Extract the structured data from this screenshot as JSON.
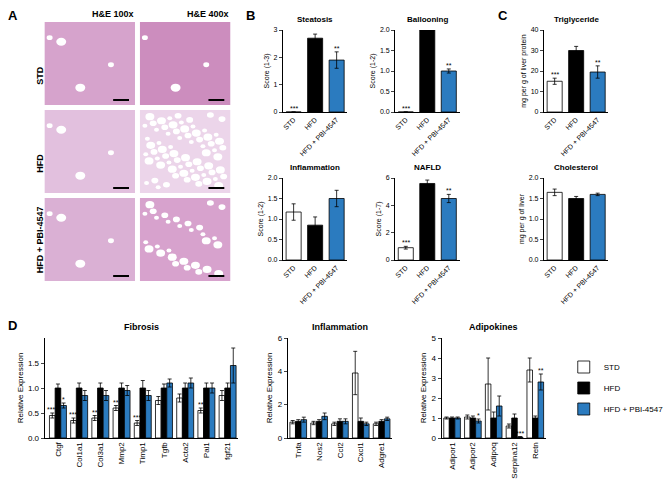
{
  "panel_labels": [
    "A",
    "B",
    "C",
    "D"
  ],
  "histology": {
    "columns": [
      "H&E 100x",
      "H&E 400x"
    ],
    "rows": [
      "STD",
      "HFD",
      "HFD + PBI-4547"
    ]
  },
  "chart_data": [
    {
      "type": "bar",
      "title": "Steatosis",
      "y_label": "Score (1-3)",
      "grid": false,
      "categories": [
        "STD",
        "HFD",
        "HFD + PBI-4547"
      ],
      "values": [
        0,
        2.7,
        1.9
      ],
      "errors": [
        0,
        0.15,
        0.3
      ],
      "colors": [
        "#ffffff",
        "#000000",
        "#2b7bbf"
      ],
      "significance": [
        "***",
        null,
        "**"
      ],
      "ylim": [
        0,
        3
      ],
      "yticks": [
        0,
        1,
        2,
        3
      ]
    },
    {
      "type": "bar",
      "title": "Ballooning",
      "y_label": "Score (1-2)",
      "grid": false,
      "categories": [
        "STD",
        "HFD",
        "HFD + PBI-4547"
      ],
      "values": [
        0,
        2.0,
        1.0
      ],
      "errors": [
        0,
        0.02,
        0.05
      ],
      "colors": [
        "#ffffff",
        "#000000",
        "#2b7bbf"
      ],
      "significance": [
        "***",
        null,
        "**"
      ],
      "ylim": [
        0,
        2
      ],
      "yticks": [
        {
          "value": 0,
          "label": "0.0"
        },
        {
          "value": 0.5,
          "label": "0.5"
        },
        {
          "value": 1,
          "label": "1.0"
        },
        {
          "value": 1.5,
          "label": "1.5"
        },
        {
          "value": 2,
          "label": "2.0"
        }
      ]
    },
    {
      "type": "bar",
      "title": "Inflammation",
      "y_label": "Score (1-2)",
      "grid": false,
      "categories": [
        "STD",
        "HFD",
        "HFD + PBI-4547"
      ],
      "values": [
        1.17,
        0.85,
        1.5
      ],
      "errors": [
        0.2,
        0.2,
        0.2
      ],
      "colors": [
        "#ffffff",
        "#000000",
        "#2b7bbf"
      ],
      "significance": [
        null,
        null,
        null
      ],
      "ylim": [
        0,
        2
      ],
      "yticks": [
        {
          "value": 0,
          "label": "0.0"
        },
        {
          "value": 0.5,
          "label": "0.5"
        },
        {
          "value": 1,
          "label": "1.0"
        },
        {
          "value": 1.5,
          "label": "1.5"
        },
        {
          "value": 2,
          "label": "2.0"
        }
      ]
    },
    {
      "type": "bar",
      "title": "NAFLD",
      "y_label": "Score (1-7)",
      "grid": false,
      "categories": [
        "STD",
        "HFD",
        "HFD + PBI-4547"
      ],
      "values": [
        0.9,
        5.6,
        4.5
      ],
      "errors": [
        0.1,
        0.25,
        0.3
      ],
      "colors": [
        "#ffffff",
        "#000000",
        "#2b7bbf"
      ],
      "significance": [
        "***",
        null,
        "**"
      ],
      "ylim": [
        0,
        6
      ],
      "yticks": [
        0,
        2,
        4,
        6
      ]
    },
    {
      "type": "bar",
      "title": "Triglyceride",
      "y_label": "mg per g of liver protein",
      "grid": false,
      "categories": [
        "STD",
        "HFD",
        "HFD + PBI-4547"
      ],
      "values": [
        15,
        30,
        19.5
      ],
      "errors": [
        1.5,
        2,
        3
      ],
      "colors": [
        "#ffffff",
        "#000000",
        "#2b7bbf"
      ],
      "significance": [
        "***",
        null,
        "**"
      ],
      "ylim": [
        0,
        40
      ],
      "yticks": [
        0,
        10,
        20,
        30,
        40
      ]
    },
    {
      "type": "bar",
      "title": "Cholesterol",
      "y_label": "mg per g of liver",
      "grid": false,
      "categories": [
        "STD",
        "HFD",
        "HFD + PBI-4547"
      ],
      "values": [
        1.65,
        1.5,
        1.6
      ],
      "errors": [
        0.08,
        0.05,
        0.03
      ],
      "colors": [
        "#ffffff",
        "#000000",
        "#2b7bbf"
      ],
      "significance": [
        null,
        null,
        null
      ],
      "ylim": [
        0,
        2
      ],
      "yticks": [
        {
          "value": 0,
          "label": "0.0"
        },
        {
          "value": 0.5,
          "label": "0.5"
        },
        {
          "value": 1,
          "label": "1.0"
        },
        {
          "value": 1.5,
          "label": "1.5"
        },
        {
          "value": 2,
          "label": "2.0"
        }
      ]
    },
    {
      "type": "bar",
      "title": "Fibrosis",
      "y_label": "Relative Expression",
      "grid": false,
      "categories": [
        "Ctgf",
        "Col1a1",
        "Col3a1",
        "Mmp2",
        "Timp1",
        "Tgfb",
        "Acta2",
        "Pai1",
        "fgf21"
      ],
      "series": [
        {
          "name": "STD",
          "color": "#ffffff",
          "values": [
            0.45,
            0.35,
            0.4,
            0.6,
            0.3,
            0.75,
            0.8,
            0.55,
            0.85
          ],
          "errors": [
            0.05,
            0.05,
            0.05,
            0.05,
            0.05,
            0.08,
            0.08,
            0.05,
            0.1
          ],
          "significance": [
            "****",
            "***",
            "**",
            "**",
            "***",
            null,
            null,
            "**",
            null
          ]
        },
        {
          "name": "HFD",
          "color": "#000000",
          "values": [
            1,
            1,
            1,
            1,
            1,
            1,
            1,
            1,
            1
          ],
          "errors": [
            0.08,
            0.1,
            0.1,
            0.1,
            0.15,
            0.08,
            0.1,
            0.1,
            0.1
          ],
          "significance": [
            null,
            null,
            null,
            null,
            null,
            null,
            null,
            null,
            null
          ]
        },
        {
          "name": "HFD + PBI-4547",
          "color": "#2b7bbf",
          "values": [
            0.65,
            0.85,
            0.85,
            0.95,
            0.85,
            1.1,
            1.1,
            1.0,
            1.45
          ],
          "errors": [
            0.05,
            0.1,
            0.1,
            0.1,
            0.1,
            0.08,
            0.1,
            0.1,
            0.35
          ],
          "significance": [
            "*",
            null,
            null,
            null,
            null,
            null,
            null,
            null,
            null
          ]
        }
      ],
      "ylim": [
        0,
        2
      ],
      "yticks": [
        {
          "value": 0,
          "label": "0.0"
        },
        {
          "value": 0.5,
          "label": "0.5"
        },
        {
          "value": 1,
          "label": "1.0"
        },
        {
          "value": 1.5,
          "label": "1.5"
        }
      ]
    },
    {
      "type": "bar",
      "title": "Inflammation",
      "y_label": "Relative Expression",
      "grid": false,
      "categories": [
        "Tnfa",
        "Nos2",
        "Ccl2",
        "Cxcl1",
        "Adgre1"
      ],
      "series": [
        {
          "name": "STD",
          "color": "#ffffff",
          "values": [
            0.95,
            0.9,
            0.85,
            3.9,
            0.85
          ],
          "errors": [
            0.1,
            0.1,
            0.1,
            1.3,
            0.1
          ],
          "significance": [
            null,
            null,
            null,
            null,
            null
          ]
        },
        {
          "name": "HFD",
          "color": "#000000",
          "values": [
            1,
            1,
            1,
            1,
            1
          ],
          "errors": [
            0.1,
            0.1,
            0.15,
            0.2,
            0.1
          ],
          "significance": [
            null,
            null,
            null,
            null,
            null
          ]
        },
        {
          "name": "HFD + PBI-4547",
          "color": "#2b7bbf",
          "values": [
            1.1,
            1.3,
            1.0,
            0.85,
            1.15
          ],
          "errors": [
            0.15,
            0.2,
            0.15,
            0.1,
            0.1
          ],
          "significance": [
            null,
            null,
            null,
            null,
            null
          ]
        }
      ],
      "ylim": [
        0,
        6
      ],
      "yticks": [
        0,
        2,
        4,
        6
      ]
    },
    {
      "type": "bar",
      "title": "Adipokines",
      "y_label": "Relative Expression",
      "grid": false,
      "legend": "right",
      "categories": [
        "Adipor1",
        "Adipor2",
        "Adipoq",
        "Serpina12",
        "Retn"
      ],
      "series": [
        {
          "name": "STD",
          "color": "#ffffff",
          "values": [
            1.0,
            1.05,
            2.7,
            0.6,
            3.4
          ],
          "errors": [
            0.05,
            0.1,
            1.3,
            0.1,
            0.6
          ],
          "significance": [
            null,
            null,
            null,
            null,
            null
          ]
        },
        {
          "name": "HFD",
          "color": "#000000",
          "values": [
            1,
            1,
            1,
            1,
            1
          ],
          "errors": [
            0.05,
            0.1,
            0.3,
            0.2,
            0.1
          ],
          "significance": [
            null,
            null,
            null,
            null,
            null
          ]
        },
        {
          "name": "HFD + PBI-4547",
          "color": "#2b7bbf",
          "values": [
            1.0,
            0.85,
            1.6,
            0.05,
            2.8
          ],
          "errors": [
            0.05,
            0.1,
            0.5,
            0.02,
            0.4
          ],
          "significance": [
            null,
            "*",
            null,
            "***",
            "**"
          ]
        }
      ],
      "ylim": [
        0,
        5
      ],
      "yticks": [
        0,
        1,
        2,
        3,
        4,
        5
      ]
    }
  ]
}
